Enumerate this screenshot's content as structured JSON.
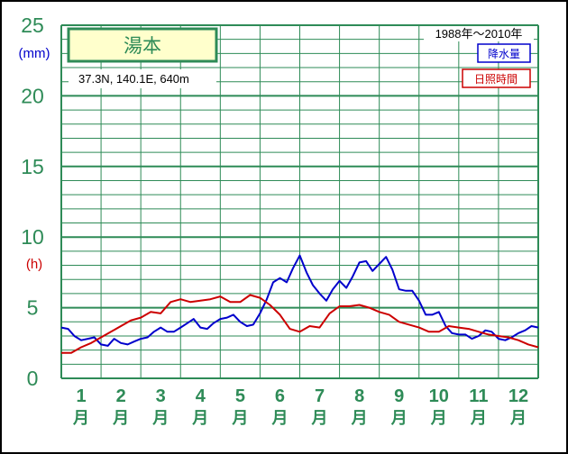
{
  "station": {
    "name": "湯本",
    "location": "37.3N,  140.1E,  640m",
    "period": "1988年～2010年"
  },
  "units": {
    "precip": "(mm)",
    "sun": "(h)"
  },
  "legend": {
    "precip": "降水量",
    "sun": "日照時間"
  },
  "colors": {
    "grid": "#2e8b57",
    "precip": "#0000cc",
    "sun": "#cc0000",
    "title_box_fill": "#ffffcc",
    "frame": "#000000"
  },
  "chart_data": {
    "type": "line",
    "title": "湯本",
    "x_labels": [
      {
        "num": "1",
        "ch": "月"
      },
      {
        "num": "2",
        "ch": "月"
      },
      {
        "num": "3",
        "ch": "月"
      },
      {
        "num": "4",
        "ch": "月"
      },
      {
        "num": "5",
        "ch": "月"
      },
      {
        "num": "6",
        "ch": "月"
      },
      {
        "num": "7",
        "ch": "月"
      },
      {
        "num": "8",
        "ch": "月"
      },
      {
        "num": "9",
        "ch": "月"
      },
      {
        "num": "10",
        "ch": "月"
      },
      {
        "num": "11",
        "ch": "月"
      },
      {
        "num": "12",
        "ch": "月"
      }
    ],
    "xlim": [
      1,
      13
    ],
    "ylim": [
      0,
      25
    ],
    "y_ticks": [
      "0",
      "5",
      "10",
      "15",
      "20",
      "25"
    ],
    "minor_grid_step": 1,
    "grid": true,
    "legend_position": "top-right",
    "series": [
      {
        "name": "降水量",
        "key": "precip",
        "x": [
          1.0,
          1.17,
          1.33,
          1.5,
          1.67,
          1.83,
          2.0,
          2.17,
          2.33,
          2.5,
          2.67,
          2.83,
          3.0,
          3.17,
          3.33,
          3.5,
          3.67,
          3.83,
          4.0,
          4.17,
          4.33,
          4.5,
          4.67,
          4.83,
          5.0,
          5.17,
          5.33,
          5.5,
          5.67,
          5.83,
          6.0,
          6.17,
          6.33,
          6.5,
          6.67,
          6.83,
          7.0,
          7.17,
          7.33,
          7.5,
          7.67,
          7.83,
          8.0,
          8.17,
          8.33,
          8.5,
          8.67,
          8.83,
          9.0,
          9.17,
          9.33,
          9.5,
          9.67,
          9.83,
          10.0,
          10.17,
          10.33,
          10.5,
          10.67,
          10.83,
          11.0,
          11.17,
          11.33,
          11.5,
          11.67,
          11.83,
          12.0,
          12.17,
          12.33,
          12.5,
          12.67,
          12.83,
          13.0
        ],
        "values": [
          3.6,
          3.5,
          3.0,
          2.7,
          2.8,
          2.9,
          2.4,
          2.3,
          2.8,
          2.5,
          2.4,
          2.6,
          2.8,
          2.9,
          3.3,
          3.6,
          3.3,
          3.3,
          3.6,
          3.9,
          4.2,
          3.6,
          3.5,
          3.9,
          4.2,
          4.3,
          4.5,
          4.0,
          3.7,
          3.8,
          4.6,
          5.6,
          6.8,
          7.1,
          6.8,
          7.8,
          8.7,
          7.5,
          6.6,
          6.0,
          5.5,
          6.3,
          6.9,
          6.4,
          7.2,
          8.2,
          8.3,
          7.6,
          8.1,
          8.6,
          7.7,
          6.3,
          6.2,
          6.2,
          5.5,
          4.5,
          4.5,
          4.7,
          3.7,
          3.2,
          3.1,
          3.1,
          2.8,
          3.0,
          3.4,
          3.3,
          2.8,
          2.7,
          2.9,
          3.2,
          3.4,
          3.7,
          3.6
        ]
      },
      {
        "name": "日照時間",
        "key": "sun",
        "x": [
          1.0,
          1.25,
          1.5,
          1.75,
          2.0,
          2.25,
          2.5,
          2.75,
          3.0,
          3.25,
          3.5,
          3.75,
          4.0,
          4.25,
          4.5,
          4.75,
          5.0,
          5.25,
          5.5,
          5.75,
          6.0,
          6.25,
          6.5,
          6.75,
          7.0,
          7.25,
          7.5,
          7.75,
          8.0,
          8.25,
          8.5,
          8.75,
          9.0,
          9.25,
          9.5,
          9.75,
          10.0,
          10.25,
          10.5,
          10.75,
          11.0,
          11.25,
          11.5,
          11.75,
          12.0,
          12.25,
          12.5,
          12.75,
          13.0
        ],
        "values": [
          1.8,
          1.8,
          2.2,
          2.5,
          2.9,
          3.3,
          3.7,
          4.1,
          4.3,
          4.7,
          4.6,
          5.4,
          5.6,
          5.4,
          5.5,
          5.6,
          5.8,
          5.4,
          5.4,
          5.9,
          5.7,
          5.2,
          4.5,
          3.5,
          3.3,
          3.7,
          3.6,
          4.6,
          5.1,
          5.1,
          5.2,
          5.0,
          4.7,
          4.5,
          4.0,
          3.8,
          3.6,
          3.3,
          3.3,
          3.7,
          3.6,
          3.5,
          3.3,
          3.1,
          3.0,
          2.9,
          2.7,
          2.4,
          2.2
        ]
      }
    ]
  }
}
